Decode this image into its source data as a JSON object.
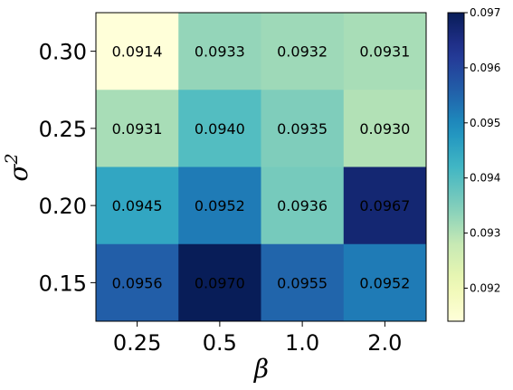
{
  "chart_data": {
    "type": "heatmap",
    "title": "",
    "xlabel": "β",
    "ylabel_base": "σ",
    "ylabel_sup": "2",
    "x_categories": [
      "0.25",
      "0.5",
      "1.0",
      "2.0"
    ],
    "y_categories": [
      "0.30",
      "0.25",
      "0.20",
      "0.15"
    ],
    "values": [
      [
        0.0914,
        0.0933,
        0.0932,
        0.0931
      ],
      [
        0.0931,
        0.094,
        0.0935,
        0.093
      ],
      [
        0.0945,
        0.0952,
        0.0936,
        0.0967
      ],
      [
        0.0956,
        0.097,
        0.0955,
        0.0952
      ]
    ],
    "cell_labels": [
      [
        "0.0914",
        "0.0933",
        "0.0932",
        "0.0931"
      ],
      [
        "0.0931",
        "0.0940",
        "0.0935",
        "0.0930"
      ],
      [
        "0.0945",
        "0.0952",
        "0.0936",
        "0.0967"
      ],
      [
        "0.0956",
        "0.0970",
        "0.0955",
        "0.0952"
      ]
    ],
    "colormap": "YlGnBu",
    "colorbar": {
      "min": 0.0914,
      "max": 0.097,
      "ticks": [
        0.092,
        0.093,
        0.094,
        0.095,
        0.096,
        0.097
      ],
      "tick_labels": [
        "0.092",
        "0.093",
        "0.094",
        "0.095",
        "0.096",
        "0.097"
      ]
    },
    "grid": false,
    "legend": "colorbar-right"
  }
}
